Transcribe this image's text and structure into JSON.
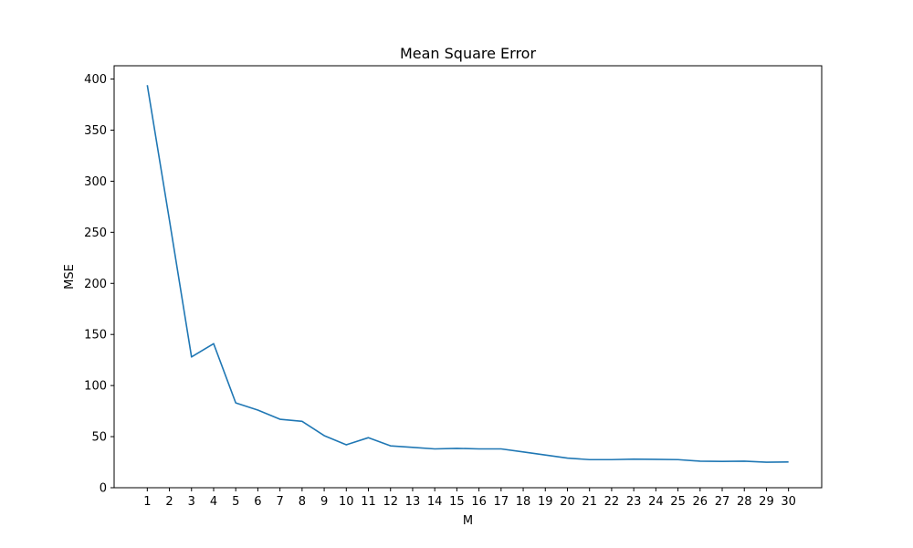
{
  "chart_data": {
    "type": "line",
    "title": "Mean Square Error",
    "xlabel": "M",
    "ylabel": "MSE",
    "x": [
      1,
      2,
      3,
      4,
      5,
      6,
      7,
      8,
      9,
      10,
      11,
      12,
      13,
      14,
      15,
      16,
      17,
      18,
      19,
      20,
      21,
      22,
      23,
      24,
      25,
      26,
      27,
      28,
      29,
      30
    ],
    "series": [
      {
        "values": [
          394,
          262,
          128,
          141,
          83,
          76,
          67,
          65,
          51,
          42,
          49,
          41,
          39.5,
          38,
          38.5,
          38,
          38,
          35,
          32,
          29,
          27.5,
          27.5,
          28,
          27.8,
          27.5,
          26,
          25.8,
          26,
          25,
          25.2
        ]
      }
    ],
    "xticks": [
      "1",
      "2",
      "3",
      "4",
      "5",
      "6",
      "7",
      "8",
      "9",
      "10",
      "11",
      "12",
      "13",
      "14",
      "15",
      "16",
      "17",
      "18",
      "19",
      "20",
      "21",
      "22",
      "23",
      "24",
      "25",
      "26",
      "27",
      "28",
      "29",
      "30"
    ],
    "yticks": [
      "0",
      "50",
      "100",
      "150",
      "200",
      "250",
      "300",
      "350",
      "400"
    ],
    "xlim": [
      -0.5,
      31.5
    ],
    "ylim": [
      0,
      413
    ],
    "grid": false,
    "line_color": "#1f77b4"
  }
}
